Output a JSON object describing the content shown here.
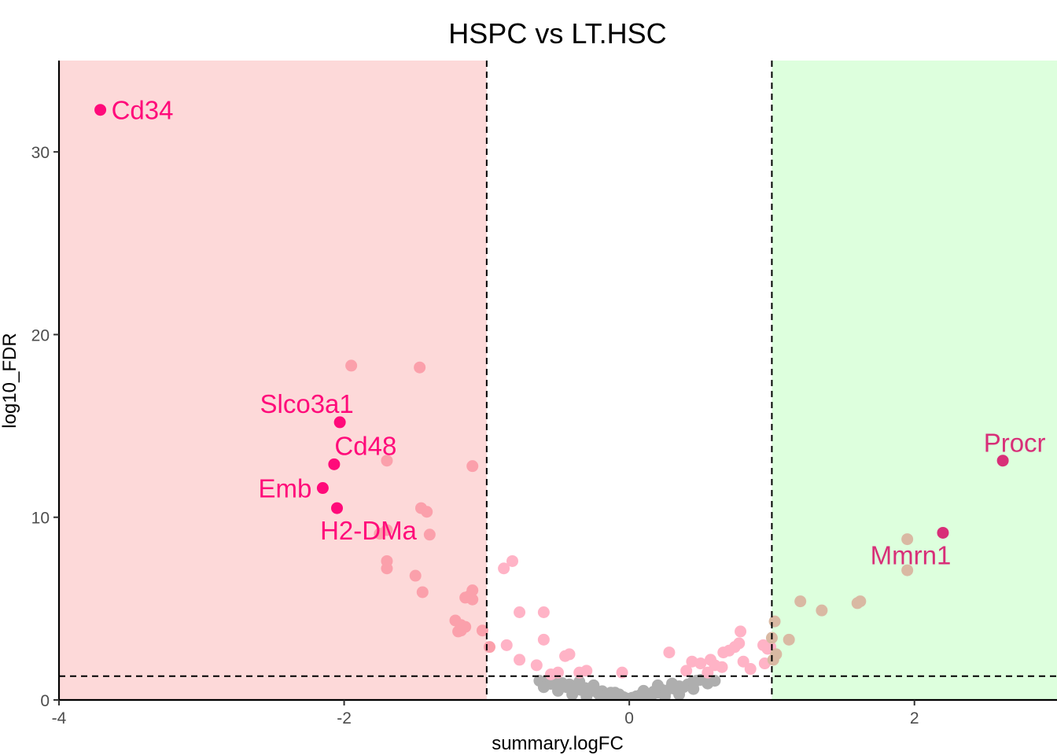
{
  "chart_data": {
    "type": "scatter",
    "title": "HSPC vs LT.HSC",
    "xlabel": "summary.logFC",
    "ylabel": "log10_FDR",
    "xlim": [
      -4,
      3
    ],
    "ylim": [
      0,
      35
    ],
    "x_ticks": [
      "-4",
      "-2",
      "0",
      "2"
    ],
    "y_ticks": [
      "0",
      "10",
      "20",
      "30"
    ],
    "grid": false,
    "legend": "none",
    "thresholds": {
      "logFC": [
        -1,
        1
      ],
      "log10_FDR": 1.3
    },
    "regions": [
      {
        "from": -4,
        "to": -1,
        "color": "#fdd9d9"
      },
      {
        "from": 1,
        "to": 3,
        "color": "#ddffdd"
      }
    ],
    "colors": {
      "labeled_down": "#ff0a7a",
      "labeled_up": "#d82f78",
      "down": "#fba0ab",
      "down_pale": "#ffb3c6",
      "up": "#d9b9a3",
      "ns_pink": "#ffb3c6",
      "ns": "#aeaeae",
      "threshold_line": "#000000"
    },
    "labeled_points": [
      {
        "label": "Cd34",
        "x": -3.71,
        "y": 32.3,
        "group": "labeled_down",
        "anchor": "right"
      },
      {
        "label": "Slco3a1",
        "x": -2.03,
        "y": 15.2,
        "group": "labeled_down",
        "anchor": "above-left"
      },
      {
        "label": "Cd48",
        "x": -2.07,
        "y": 12.9,
        "group": "labeled_down",
        "anchor": "above-right"
      },
      {
        "label": "Emb",
        "x": -2.15,
        "y": 11.6,
        "group": "labeled_down",
        "anchor": "left"
      },
      {
        "label": "H2-DMa",
        "x": -2.05,
        "y": 10.5,
        "group": "labeled_down",
        "anchor": "below"
      },
      {
        "label": "Procr",
        "x": 2.62,
        "y": 13.1,
        "group": "labeled_up",
        "anchor": "above"
      },
      {
        "label": "Mmrn1",
        "x": 2.2,
        "y": 9.15,
        "group": "labeled_up",
        "anchor": "below-left"
      }
    ],
    "points": [
      {
        "x": -1.95,
        "y": 18.3,
        "group": "down"
      },
      {
        "x": -1.47,
        "y": 18.2,
        "group": "down"
      },
      {
        "x": -1.1,
        "y": 12.8,
        "group": "down"
      },
      {
        "x": -1.7,
        "y": 13.1,
        "group": "down"
      },
      {
        "x": -1.46,
        "y": 10.5,
        "group": "down"
      },
      {
        "x": -1.42,
        "y": 10.3,
        "group": "down"
      },
      {
        "x": -1.4,
        "y": 9.05,
        "group": "down"
      },
      {
        "x": -1.7,
        "y": 9.3,
        "group": "down"
      },
      {
        "x": -1.75,
        "y": 9.1,
        "group": "down"
      },
      {
        "x": -1.7,
        "y": 7.6,
        "group": "down"
      },
      {
        "x": -1.7,
        "y": 7.2,
        "group": "down"
      },
      {
        "x": -1.5,
        "y": 6.8,
        "group": "down"
      },
      {
        "x": -1.45,
        "y": 5.9,
        "group": "down"
      },
      {
        "x": -1.1,
        "y": 6.0,
        "group": "down"
      },
      {
        "x": -1.12,
        "y": 5.7,
        "group": "down"
      },
      {
        "x": -1.15,
        "y": 5.6,
        "group": "down"
      },
      {
        "x": -1.1,
        "y": 5.5,
        "group": "down"
      },
      {
        "x": -1.22,
        "y": 4.35,
        "group": "down"
      },
      {
        "x": -1.18,
        "y": 4.1,
        "group": "down"
      },
      {
        "x": -1.15,
        "y": 4.0,
        "group": "down"
      },
      {
        "x": -1.18,
        "y": 3.8,
        "group": "down"
      },
      {
        "x": -1.2,
        "y": 3.75,
        "group": "down"
      },
      {
        "x": -1.03,
        "y": 3.8,
        "group": "down"
      },
      {
        "x": -0.98,
        "y": 2.9,
        "group": "down"
      },
      {
        "x": -0.88,
        "y": 7.2,
        "group": "down_pale"
      },
      {
        "x": -0.82,
        "y": 7.6,
        "group": "down_pale"
      },
      {
        "x": -0.77,
        "y": 4.8,
        "group": "down_pale"
      },
      {
        "x": -0.6,
        "y": 4.8,
        "group": "down_pale"
      },
      {
        "x": -0.86,
        "y": 3.0,
        "group": "down_pale"
      },
      {
        "x": -0.6,
        "y": 3.3,
        "group": "down_pale"
      },
      {
        "x": -0.77,
        "y": 2.2,
        "group": "down_pale"
      },
      {
        "x": -0.45,
        "y": 2.4,
        "group": "down_pale"
      },
      {
        "x": -0.42,
        "y": 2.5,
        "group": "down_pale"
      },
      {
        "x": -0.65,
        "y": 1.9,
        "group": "down_pale"
      },
      {
        "x": -0.5,
        "y": 1.5,
        "group": "down_pale"
      },
      {
        "x": -0.3,
        "y": 1.6,
        "group": "down_pale"
      },
      {
        "x": -0.35,
        "y": 1.5,
        "group": "down_pale"
      },
      {
        "x": -0.05,
        "y": 1.5,
        "group": "down_pale"
      },
      {
        "x": -0.55,
        "y": 1.4,
        "group": "down_pale"
      },
      {
        "x": 0.28,
        "y": 2.6,
        "group": "ns_pink"
      },
      {
        "x": 0.44,
        "y": 2.1,
        "group": "ns_pink"
      },
      {
        "x": 0.5,
        "y": 2.0,
        "group": "ns_pink"
      },
      {
        "x": 0.57,
        "y": 2.2,
        "group": "ns_pink"
      },
      {
        "x": 0.6,
        "y": 1.9,
        "group": "ns_pink"
      },
      {
        "x": 0.65,
        "y": 1.8,
        "group": "ns_pink"
      },
      {
        "x": 0.66,
        "y": 2.6,
        "group": "ns_pink"
      },
      {
        "x": 0.7,
        "y": 2.7,
        "group": "ns_pink"
      },
      {
        "x": 0.74,
        "y": 2.9,
        "group": "ns_pink"
      },
      {
        "x": 0.77,
        "y": 3.1,
        "group": "ns_pink"
      },
      {
        "x": 0.78,
        "y": 3.75,
        "group": "ns_pink"
      },
      {
        "x": 0.8,
        "y": 2.1,
        "group": "ns_pink"
      },
      {
        "x": 0.85,
        "y": 1.7,
        "group": "ns_pink"
      },
      {
        "x": 0.95,
        "y": 2.0,
        "group": "ns_pink"
      },
      {
        "x": 0.94,
        "y": 3.0,
        "group": "ns_pink"
      },
      {
        "x": 0.97,
        "y": 2.8,
        "group": "ns_pink"
      },
      {
        "x": 0.99,
        "y": 2.9,
        "group": "ns_pink"
      },
      {
        "x": 0.55,
        "y": 1.5,
        "group": "ns_pink"
      },
      {
        "x": 0.4,
        "y": 1.6,
        "group": "ns_pink"
      },
      {
        "x": 1.02,
        "y": 4.3,
        "group": "up"
      },
      {
        "x": 1.0,
        "y": 3.4,
        "group": "up"
      },
      {
        "x": 1.03,
        "y": 2.5,
        "group": "up"
      },
      {
        "x": 1.01,
        "y": 2.2,
        "group": "up"
      },
      {
        "x": 1.2,
        "y": 5.4,
        "group": "up"
      },
      {
        "x": 1.35,
        "y": 4.9,
        "group": "up"
      },
      {
        "x": 1.12,
        "y": 3.3,
        "group": "up"
      },
      {
        "x": 1.6,
        "y": 5.3,
        "group": "up"
      },
      {
        "x": 1.62,
        "y": 5.4,
        "group": "up"
      },
      {
        "x": 1.95,
        "y": 8.8,
        "group": "up"
      },
      {
        "x": 1.95,
        "y": 7.1,
        "group": "up"
      },
      {
        "x": -0.63,
        "y": 1.05,
        "group": "ns"
      },
      {
        "x": -0.6,
        "y": 0.95,
        "group": "ns"
      },
      {
        "x": -0.57,
        "y": 1.1,
        "group": "ns"
      },
      {
        "x": -0.55,
        "y": 0.88,
        "group": "ns"
      },
      {
        "x": -0.52,
        "y": 1.0,
        "group": "ns"
      },
      {
        "x": -0.5,
        "y": 0.8,
        "group": "ns"
      },
      {
        "x": -0.47,
        "y": 0.92,
        "group": "ns"
      },
      {
        "x": -0.44,
        "y": 0.7,
        "group": "ns"
      },
      {
        "x": -0.42,
        "y": 0.85,
        "group": "ns"
      },
      {
        "x": -0.4,
        "y": 0.6,
        "group": "ns"
      },
      {
        "x": -0.37,
        "y": 0.75,
        "group": "ns"
      },
      {
        "x": -0.34,
        "y": 0.55,
        "group": "ns"
      },
      {
        "x": -0.31,
        "y": 0.65,
        "group": "ns"
      },
      {
        "x": -0.28,
        "y": 0.45,
        "group": "ns"
      },
      {
        "x": -0.25,
        "y": 0.55,
        "group": "ns"
      },
      {
        "x": -0.22,
        "y": 0.38,
        "group": "ns"
      },
      {
        "x": -0.19,
        "y": 0.48,
        "group": "ns"
      },
      {
        "x": -0.16,
        "y": 0.3,
        "group": "ns"
      },
      {
        "x": -0.13,
        "y": 0.4,
        "group": "ns"
      },
      {
        "x": -0.1,
        "y": 0.22,
        "group": "ns"
      },
      {
        "x": -0.07,
        "y": 0.3,
        "group": "ns"
      },
      {
        "x": -0.04,
        "y": 0.15,
        "group": "ns"
      },
      {
        "x": -0.02,
        "y": 0.08,
        "group": "ns"
      },
      {
        "x": 0.0,
        "y": 0.05,
        "group": "ns"
      },
      {
        "x": 0.02,
        "y": 0.12,
        "group": "ns"
      },
      {
        "x": 0.05,
        "y": 0.2,
        "group": "ns"
      },
      {
        "x": 0.08,
        "y": 0.28,
        "group": "ns"
      },
      {
        "x": 0.11,
        "y": 0.36,
        "group": "ns"
      },
      {
        "x": 0.14,
        "y": 0.3,
        "group": "ns"
      },
      {
        "x": 0.17,
        "y": 0.45,
        "group": "ns"
      },
      {
        "x": 0.2,
        "y": 0.4,
        "group": "ns"
      },
      {
        "x": 0.23,
        "y": 0.55,
        "group": "ns"
      },
      {
        "x": 0.26,
        "y": 0.5,
        "group": "ns"
      },
      {
        "x": 0.29,
        "y": 0.65,
        "group": "ns"
      },
      {
        "x": 0.32,
        "y": 0.6,
        "group": "ns"
      },
      {
        "x": 0.35,
        "y": 0.75,
        "group": "ns"
      },
      {
        "x": 0.38,
        "y": 0.7,
        "group": "ns"
      },
      {
        "x": 0.41,
        "y": 0.85,
        "group": "ns"
      },
      {
        "x": 0.44,
        "y": 0.95,
        "group": "ns"
      },
      {
        "x": 0.47,
        "y": 1.05,
        "group": "ns"
      },
      {
        "x": 0.5,
        "y": 1.1,
        "group": "ns"
      },
      {
        "x": -0.4,
        "y": 0.3,
        "group": "ns"
      },
      {
        "x": -0.3,
        "y": 0.2,
        "group": "ns"
      },
      {
        "x": -0.2,
        "y": 0.15,
        "group": "ns"
      },
      {
        "x": 0.15,
        "y": 0.12,
        "group": "ns"
      },
      {
        "x": 0.25,
        "y": 0.2,
        "group": "ns"
      },
      {
        "x": 0.35,
        "y": 0.3,
        "group": "ns"
      },
      {
        "x": -0.5,
        "y": 0.5,
        "group": "ns"
      },
      {
        "x": 0.45,
        "y": 0.6,
        "group": "ns"
      },
      {
        "x": -0.6,
        "y": 0.7,
        "group": "ns"
      },
      {
        "x": 0.55,
        "y": 0.9,
        "group": "ns"
      },
      {
        "x": 0.6,
        "y": 1.05,
        "group": "ns"
      },
      {
        "x": -0.1,
        "y": 0.4,
        "group": "ns"
      },
      {
        "x": 0.1,
        "y": 0.5,
        "group": "ns"
      },
      {
        "x": -0.25,
        "y": 0.8,
        "group": "ns"
      },
      {
        "x": 0.3,
        "y": 0.9,
        "group": "ns"
      },
      {
        "x": -0.35,
        "y": 1.0,
        "group": "ns"
      },
      {
        "x": 0.2,
        "y": 0.8,
        "group": "ns"
      }
    ]
  }
}
